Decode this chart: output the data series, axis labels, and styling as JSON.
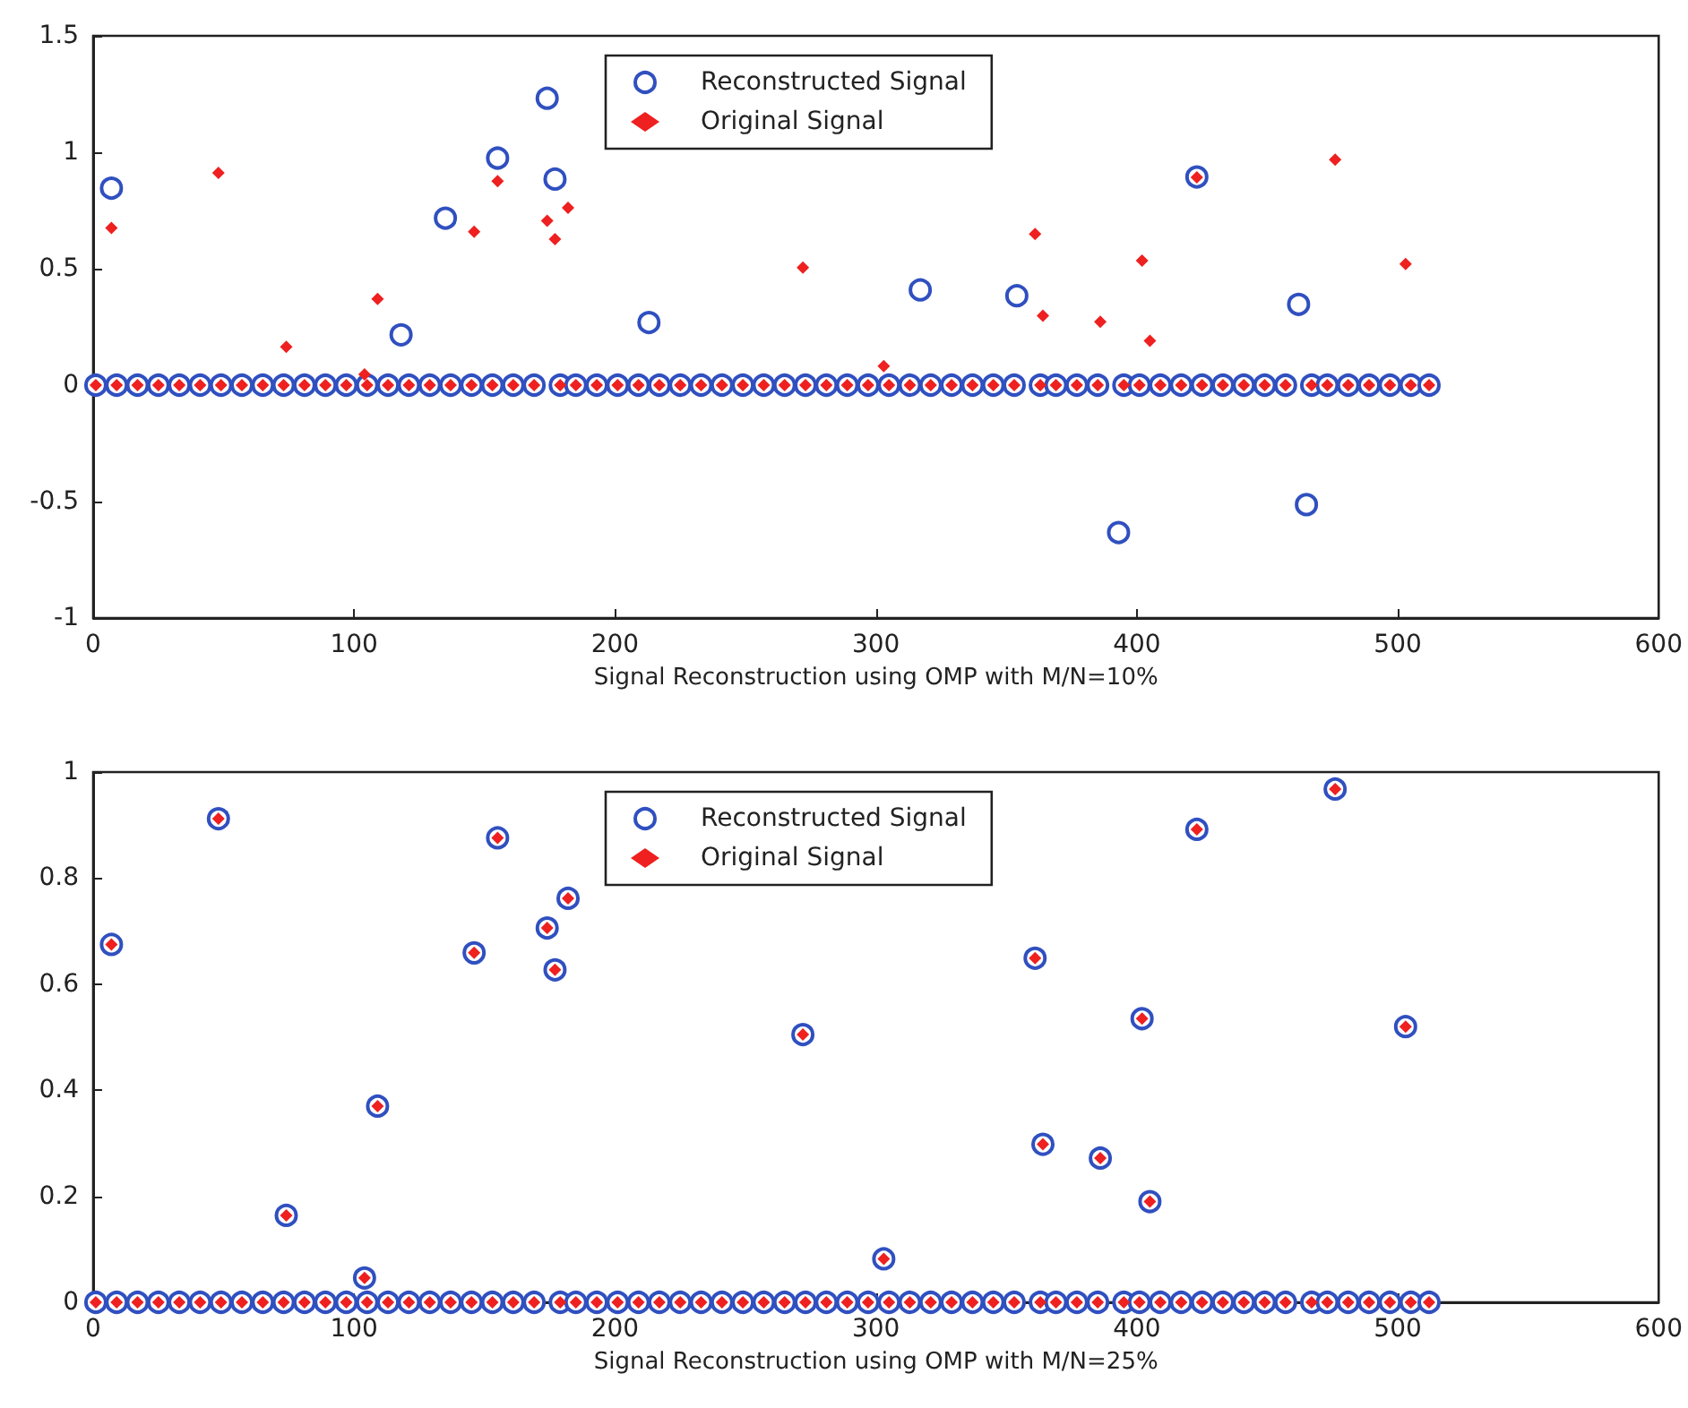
{
  "chart_data": [
    {
      "type": "scatter",
      "xlabel": "Signal Reconstruction using OMP with M/N=10%",
      "xlim": [
        0,
        600
      ],
      "xticks": [
        0,
        100,
        200,
        300,
        400,
        500,
        600
      ],
      "ylim": [
        -1,
        1.5
      ],
      "yticks": [
        -1,
        -0.5,
        0,
        0.5,
        1,
        1.5
      ],
      "grid": false,
      "legend": "top center",
      "series": [
        {
          "name": "Reconstructed Signal",
          "color": "#3050c0",
          "marker": "circle",
          "x": [
            7,
            118,
            135,
            155,
            174,
            177,
            213,
            317,
            354,
            393,
            423,
            462,
            465,
            1,
            9,
            17,
            25,
            33,
            41,
            49,
            57,
            65,
            73,
            81,
            89,
            97,
            105,
            113,
            121,
            129,
            137,
            145,
            153,
            161,
            169,
            179,
            185,
            193,
            201,
            209,
            217,
            225,
            233,
            241,
            249,
            257,
            265,
            273,
            281,
            289,
            297,
            305,
            313,
            321,
            329,
            337,
            345,
            353,
            363,
            369,
            377,
            385,
            395,
            401,
            409,
            417,
            425,
            433,
            441,
            449,
            457,
            467,
            473,
            481,
            489,
            497,
            505,
            512
          ],
          "values": [
            0.846,
            0.216,
            0.717,
            0.975,
            1.232,
            0.885,
            0.269,
            0.409,
            0.384,
            -0.633,
            0.894,
            0.347,
            -0.513,
            0,
            0,
            0,
            0,
            0,
            0,
            0,
            0,
            0,
            0,
            0,
            0,
            0,
            0,
            0,
            0,
            0,
            0,
            0,
            0,
            0,
            0,
            0,
            0,
            0,
            0,
            0,
            0,
            0,
            0,
            0,
            0,
            0,
            0,
            0,
            0,
            0,
            0,
            0,
            0,
            0,
            0,
            0,
            0,
            0,
            0,
            0,
            0,
            0,
            0,
            0,
            0,
            0,
            0,
            0,
            0,
            0,
            0,
            0,
            0,
            0,
            0,
            0,
            0,
            0
          ]
        },
        {
          "name": "Original Signal",
          "color": "#ee2020",
          "marker": "diamond",
          "x": [
            7,
            48,
            74,
            104,
            109,
            146,
            155,
            174,
            177,
            182,
            272,
            303,
            361,
            364,
            386,
            402,
            405,
            423,
            476,
            503,
            1,
            9,
            17,
            25,
            33,
            41,
            49,
            57,
            65,
            73,
            81,
            89,
            97,
            105,
            113,
            121,
            129,
            137,
            145,
            153,
            161,
            169,
            179,
            185,
            193,
            201,
            209,
            217,
            225,
            233,
            241,
            249,
            257,
            265,
            273,
            281,
            289,
            297,
            305,
            313,
            321,
            329,
            337,
            345,
            353,
            363,
            369,
            377,
            385,
            395,
            401,
            409,
            417,
            425,
            433,
            441,
            449,
            457,
            467,
            473,
            481,
            489,
            497,
            505,
            512
          ],
          "values": [
            0.675,
            0.912,
            0.164,
            0.046,
            0.37,
            0.659,
            0.876,
            0.706,
            0.627,
            0.762,
            0.505,
            0.082,
            0.649,
            0.298,
            0.272,
            0.535,
            0.19,
            0.892,
            0.968,
            0.52,
            0,
            0,
            0,
            0,
            0,
            0,
            0,
            0,
            0,
            0,
            0,
            0,
            0,
            0,
            0,
            0,
            0,
            0,
            0,
            0,
            0,
            0,
            0,
            0,
            0,
            0,
            0,
            0,
            0,
            0,
            0,
            0,
            0,
            0,
            0,
            0,
            0,
            0,
            0,
            0,
            0,
            0,
            0,
            0,
            0,
            0,
            0,
            0,
            0,
            0,
            0,
            0,
            0,
            0,
            0,
            0,
            0,
            0,
            0,
            0,
            0,
            0,
            0,
            0,
            0
          ]
        }
      ]
    },
    {
      "type": "scatter",
      "xlabel": "Signal Reconstruction using OMP with M/N=25%",
      "xlim": [
        0,
        600
      ],
      "xticks": [
        0,
        100,
        200,
        300,
        400,
        500,
        600
      ],
      "ylim": [
        0,
        1
      ],
      "yticks": [
        0,
        0.2,
        0.4,
        0.6,
        0.8,
        1
      ],
      "grid": false,
      "legend": "top center",
      "series": [
        {
          "name": "Reconstructed Signal",
          "color": "#3050c0",
          "marker": "circle",
          "x": [
            7,
            48,
            74,
            104,
            109,
            146,
            155,
            174,
            177,
            182,
            272,
            303,
            361,
            364,
            386,
            402,
            405,
            423,
            476,
            503,
            1,
            9,
            17,
            25,
            33,
            41,
            49,
            57,
            65,
            73,
            81,
            89,
            97,
            105,
            113,
            121,
            129,
            137,
            145,
            153,
            161,
            169,
            179,
            185,
            193,
            201,
            209,
            217,
            225,
            233,
            241,
            249,
            257,
            265,
            273,
            281,
            289,
            297,
            305,
            313,
            321,
            329,
            337,
            345,
            353,
            363,
            369,
            377,
            385,
            395,
            401,
            409,
            417,
            425,
            433,
            441,
            449,
            457,
            467,
            473,
            481,
            489,
            497,
            505,
            512
          ],
          "values": [
            0.675,
            0.912,
            0.164,
            0.046,
            0.37,
            0.659,
            0.876,
            0.706,
            0.627,
            0.762,
            0.505,
            0.082,
            0.649,
            0.298,
            0.272,
            0.535,
            0.19,
            0.892,
            0.968,
            0.52,
            0,
            0,
            0,
            0,
            0,
            0,
            0,
            0,
            0,
            0,
            0,
            0,
            0,
            0,
            0,
            0,
            0,
            0,
            0,
            0,
            0,
            0,
            0,
            0,
            0,
            0,
            0,
            0,
            0,
            0,
            0,
            0,
            0,
            0,
            0,
            0,
            0,
            0,
            0,
            0,
            0,
            0,
            0,
            0,
            0,
            0,
            0,
            0,
            0,
            0,
            0,
            0,
            0,
            0,
            0,
            0,
            0,
            0,
            0,
            0,
            0,
            0,
            0,
            0,
            0
          ]
        },
        {
          "name": "Original Signal",
          "color": "#ee2020",
          "marker": "diamond",
          "x": [
            7,
            48,
            74,
            104,
            109,
            146,
            155,
            174,
            177,
            182,
            272,
            303,
            361,
            364,
            386,
            402,
            405,
            423,
            476,
            503,
            1,
            9,
            17,
            25,
            33,
            41,
            49,
            57,
            65,
            73,
            81,
            89,
            97,
            105,
            113,
            121,
            129,
            137,
            145,
            153,
            161,
            169,
            179,
            185,
            193,
            201,
            209,
            217,
            225,
            233,
            241,
            249,
            257,
            265,
            273,
            281,
            289,
            297,
            305,
            313,
            321,
            329,
            337,
            345,
            353,
            363,
            369,
            377,
            385,
            395,
            401,
            409,
            417,
            425,
            433,
            441,
            449,
            457,
            467,
            473,
            481,
            489,
            497,
            505,
            512
          ],
          "values": [
            0.675,
            0.912,
            0.164,
            0.046,
            0.37,
            0.659,
            0.876,
            0.706,
            0.627,
            0.762,
            0.505,
            0.082,
            0.649,
            0.298,
            0.272,
            0.535,
            0.19,
            0.892,
            0.968,
            0.52,
            0,
            0,
            0,
            0,
            0,
            0,
            0,
            0,
            0,
            0,
            0,
            0,
            0,
            0,
            0,
            0,
            0,
            0,
            0,
            0,
            0,
            0,
            0,
            0,
            0,
            0,
            0,
            0,
            0,
            0,
            0,
            0,
            0,
            0,
            0,
            0,
            0,
            0,
            0,
            0,
            0,
            0,
            0,
            0,
            0,
            0,
            0,
            0,
            0,
            0,
            0,
            0,
            0,
            0,
            0,
            0,
            0,
            0,
            0,
            0,
            0,
            0,
            0,
            0,
            0
          ]
        }
      ]
    }
  ]
}
